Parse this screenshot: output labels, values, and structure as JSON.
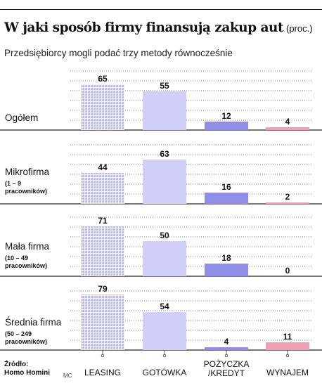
{
  "title": "W jaki sposób firmy finansują zakup aut",
  "unit": "(proc.)",
  "subtitle": "Przedsiębiorcy mogli podać trzy metody równocześnie",
  "source": [
    "Źródło:",
    "Homo Homini"
  ],
  "credit": "MC",
  "colors": {
    "leasing": "#b9b9f0",
    "gotowka": "#cfcffa",
    "pozyczka": "#8f8fe8",
    "wynajem": "#efa0b2"
  },
  "chart_data": {
    "type": "bar",
    "categories": [
      "LEASING",
      "GOTÓWKA",
      "POŻYCZKA\n/KREDYT",
      "WYNAJEM"
    ],
    "groups": [
      {
        "name": "Ogółem",
        "subtitle": [],
        "values": [
          65,
          55,
          12,
          4
        ]
      },
      {
        "name": "Mikrofirma",
        "subtitle": [
          "(1 – 9",
          "pracowników)"
        ],
        "values": [
          44,
          63,
          16,
          2
        ]
      },
      {
        "name": "Mała firma",
        "subtitle": [
          "(10 – 49",
          "pracowników)"
        ],
        "values": [
          71,
          50,
          18,
          0
        ]
      },
      {
        "name": "Średnia firma",
        "subtitle": [
          "(50 – 249",
          "pracowników)"
        ],
        "values": [
          79,
          54,
          4,
          11
        ]
      }
    ]
  }
}
